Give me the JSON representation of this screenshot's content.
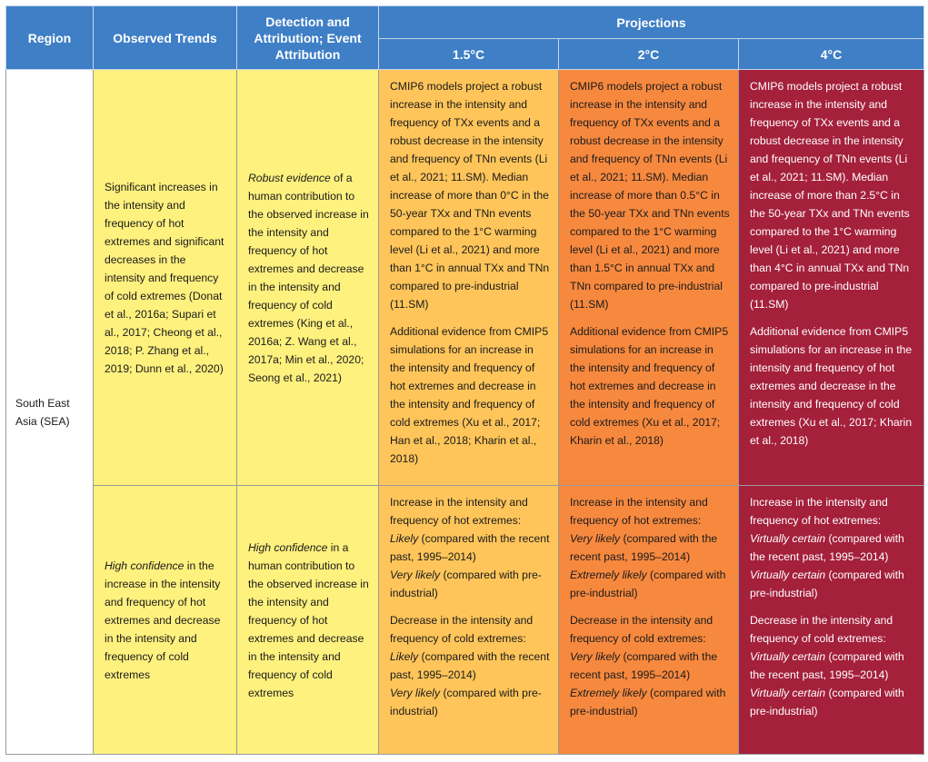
{
  "header": {
    "region": "Region",
    "observed": "Observed Trends",
    "detection": "Detection and Attribution; Event Attribution",
    "projections": "Projections",
    "p15": "1.5°C",
    "p2": "2°C",
    "p4": "4°C"
  },
  "region": "South East Asia (SEA)",
  "rows": [
    {
      "observed": "Significant increases in the intensity and frequency of hot extremes and significant decreases in the intensity and frequency of cold extremes (Donat et al., 2016a; Supari et al., 2017; Cheong et al., 2018; P. Zhang et al., 2019; Dunn et al., 2020)",
      "detection_em": "Robust evidence",
      "detection_rest": " of a human contribution to the observed increase in the intensity and frequency of hot extremes and decrease in the intensity and frequency of cold extremes (King et al., 2016a; Z. Wang et al., 2017a; Min et al., 2020; Seong et al., 2021)",
      "p15_a": "CMIP6 models project a robust increase in the intensity and frequency of TXx events and a robust decrease in the intensity and frequency of TNn events (Li et al., 2021; 11.SM). Median increase of more than 0°C in the 50-year TXx and TNn events compared to the 1°C warming level (Li et al., 2021) and more than 1°C in annual TXx and TNn compared to pre-industrial (11.SM)",
      "p15_b": "Additional evidence from CMIP5 simulations for an increase in the intensity and frequency of hot extremes and decrease in the intensity and frequency of cold extremes (Xu et al., 2017; Han et al., 2018; Kharin et al., 2018)",
      "p2_a": "CMIP6 models project a robust increase in the intensity and frequency of TXx events and a robust decrease in the intensity and frequency of TNn events (Li et al., 2021; 11.SM). Median increase of more than 0.5°C in the 50-year TXx and TNn events compared to the 1°C warming level (Li et al., 2021) and more than 1.5°C in annual TXx and TNn compared to pre-industrial (11.SM)",
      "p2_b": "Additional evidence from CMIP5 simulations for an increase in the intensity and frequency of hot extremes and decrease in the intensity and frequency of cold extremes (Xu et al., 2017; Kharin et al., 2018)",
      "p4_a": "CMIP6 models project a robust increase in the intensity and frequency of TXx events and a robust decrease in the intensity and frequency of TNn events (Li et al., 2021; 11.SM). Median increase of more than 2.5°C in the 50-year TXx and TNn events compared to the 1°C warming level (Li et al., 2021) and more than 4°C in annual TXx and TNn compared to pre-industrial (11.SM)",
      "p4_b": "Additional evidence from CMIP5 simulations for an increase in the intensity and frequency of hot extremes and decrease in the intensity and frequency of cold extremes (Xu et al., 2017; Kharin et al., 2018)"
    },
    {
      "observed_em": "High confidence",
      "observed_rest": " in the increase in the intensity and frequency of hot extremes and decrease in the intensity and frequency of cold extremes",
      "detection_em": "High confidence",
      "detection_rest": " in a human contribution to the observed increase in the intensity and frequency of hot extremes and decrease in the intensity and frequency of cold extremes",
      "hot_intro": "Increase in the intensity and frequency of hot extremes:",
      "cold_intro": "Decrease in the intensity and frequency of cold extremes:",
      "recent": " (compared with the recent past, 1995–2014)",
      "preind": " (compared with pre-industrial)",
      "p15": {
        "hot1": "Likely",
        "hot2": "Very likely",
        "cold1": "Likely",
        "cold2": "Very likely"
      },
      "p2": {
        "hot1": "Very likely",
        "hot2": "Extremely likely",
        "cold1": "Very likely",
        "cold2": "Extremely likely"
      },
      "p4": {
        "hot1": "Virtually certain",
        "hot2": "Virtually certain",
        "cold1": "Virtually certain",
        "cold2": "Virtually certain"
      }
    }
  ],
  "colors": {
    "header": "#3f7fc6",
    "observed": "#fff17e",
    "p15": "#ffc55a",
    "p2": "#f7893f",
    "p4": "#a4203b"
  }
}
